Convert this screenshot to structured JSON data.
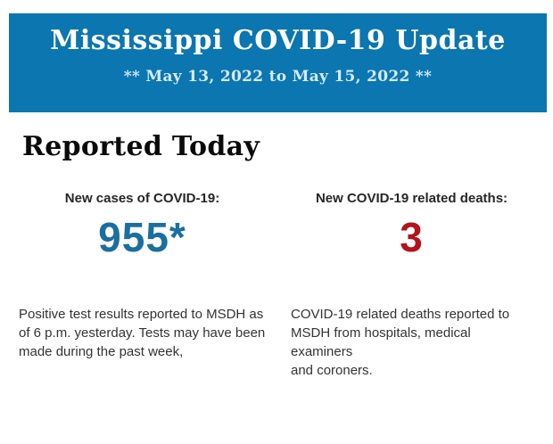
{
  "banner": {
    "bg_color": "#0b76b0",
    "title": "Mississippi COVID-19 Update",
    "title_color": "#ffffff",
    "subtitle": "** May 13, 2022 to May 15, 2022 **",
    "subtitle_color": "#d7ebf6"
  },
  "section": {
    "heading": "Reported Today"
  },
  "stats": [
    {
      "label": "New cases of COVID-19:",
      "value": "955*",
      "value_color": "#1a6fa0",
      "description": "Positive test results reported to MSDH as\nof 6 p.m. yesterday. Tests may have been\nmade during the past week,"
    },
    {
      "label": "New COVID-19 related deaths:",
      "value": "3",
      "value_color": "#b5121b",
      "description": "COVID-19 related deaths reported to\nMSDH from hospitals, medical examiners\nand coroners."
    }
  ]
}
